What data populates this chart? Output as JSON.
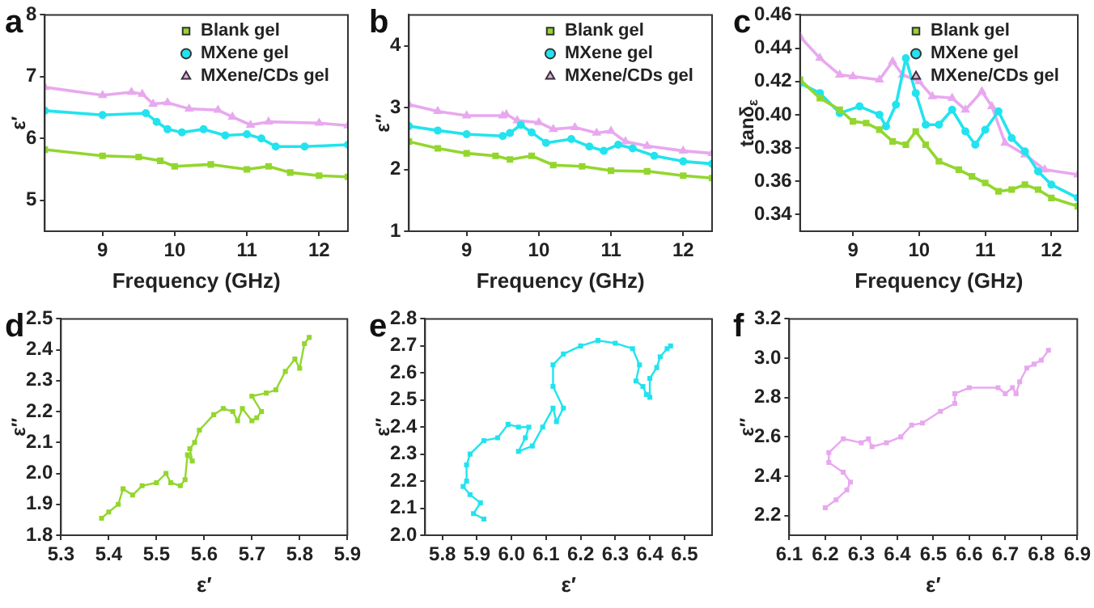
{
  "chart_data": [
    {
      "type": "line",
      "title": "a",
      "xlabel": "Frequency (GHz)",
      "ylabel": "ε′",
      "xlim": [
        8.2,
        12.4
      ],
      "xticks": [
        9,
        10,
        11,
        12
      ],
      "ylim": [
        4.5,
        8
      ],
      "yticks": [
        5,
        6,
        7,
        8
      ],
      "grid": false,
      "legend": "top right",
      "series": [
        {
          "name": "Blank gel",
          "color": "#93d62e",
          "marker": "square",
          "x": [
            8.2,
            9,
            9.5,
            9.8,
            10,
            10.5,
            11,
            11.3,
            11.6,
            12,
            12.4
          ],
          "values": [
            5.82,
            5.72,
            5.7,
            5.64,
            5.55,
            5.58,
            5.5,
            5.55,
            5.45,
            5.4,
            5.38
          ]
        },
        {
          "name": "MXene gel",
          "color": "#22e3ee",
          "marker": "circle",
          "x": [
            8.2,
            9,
            9.6,
            9.75,
            9.9,
            10.1,
            10.4,
            10.7,
            11,
            11.2,
            11.4,
            11.8,
            12.4
          ],
          "values": [
            6.45,
            6.38,
            6.41,
            6.27,
            6.15,
            6.1,
            6.15,
            6.05,
            6.07,
            6.0,
            5.87,
            5.87,
            5.9
          ]
        },
        {
          "name": "MXene/CDs gel",
          "color": "#e8a8ef",
          "marker": "triangle",
          "x": [
            8.2,
            9,
            9.4,
            9.55,
            9.7,
            9.9,
            10.2,
            10.6,
            10.8,
            11.05,
            11.3,
            12,
            12.4
          ],
          "values": [
            6.83,
            6.7,
            6.75,
            6.72,
            6.56,
            6.58,
            6.48,
            6.46,
            6.35,
            6.22,
            6.27,
            6.25,
            6.21
          ]
        }
      ]
    },
    {
      "type": "line",
      "title": "b",
      "xlabel": "Frequency (GHz)",
      "ylabel": "ε″",
      "xlim": [
        8.2,
        12.4
      ],
      "xticks": [
        9,
        10,
        11,
        12
      ],
      "ylim": [
        1,
        4.5
      ],
      "yticks": [
        1,
        2,
        3,
        4
      ],
      "grid": false,
      "legend": "top right",
      "series": [
        {
          "name": "Blank gel",
          "color": "#93d62e",
          "marker": "square",
          "x": [
            8.2,
            8.6,
            9,
            9.4,
            9.6,
            9.9,
            10.2,
            10.6,
            11,
            11.5,
            12,
            12.4
          ],
          "values": [
            2.45,
            2.34,
            2.26,
            2.22,
            2.16,
            2.22,
            2.07,
            2.05,
            1.98,
            1.97,
            1.9,
            1.86
          ]
        },
        {
          "name": "MXene gel",
          "color": "#22e3ee",
          "marker": "circle",
          "x": [
            8.2,
            8.6,
            9,
            9.5,
            9.6,
            9.75,
            9.9,
            10.1,
            10.45,
            10.7,
            10.9,
            11.1,
            11.3,
            11.6,
            12,
            12.4
          ],
          "values": [
            2.7,
            2.63,
            2.57,
            2.54,
            2.59,
            2.72,
            2.6,
            2.43,
            2.49,
            2.37,
            2.3,
            2.4,
            2.34,
            2.22,
            2.13,
            2.09
          ]
        },
        {
          "name": "MXene/CDs gel",
          "color": "#e8a8ef",
          "marker": "triangle",
          "x": [
            8.2,
            8.6,
            9,
            9.5,
            9.55,
            9.7,
            10,
            10.2,
            10.5,
            10.8,
            11,
            11.2,
            11.5,
            12,
            12.4
          ],
          "values": [
            3.05,
            2.94,
            2.87,
            2.87,
            2.89,
            2.79,
            2.76,
            2.65,
            2.68,
            2.59,
            2.62,
            2.45,
            2.38,
            2.3,
            2.26
          ]
        }
      ]
    },
    {
      "type": "line",
      "title": "c",
      "xlabel": "Frequency (GHz)",
      "ylabel": "tanδ$_{ε}$",
      "xlim": [
        8.2,
        12.4
      ],
      "xticks": [
        9,
        10,
        11,
        12
      ],
      "ylim": [
        0.33,
        0.46
      ],
      "yticks": [
        0.34,
        0.36,
        0.38,
        {
          "value": 0.4,
          "label": "0.40"
        },
        0.42,
        0.44,
        0.46
      ],
      "grid": false,
      "legend": "top right",
      "series": [
        {
          "name": "Blank gel",
          "color": "#93d62e",
          "marker": "square",
          "x": [
            8.2,
            8.5,
            8.8,
            9,
            9.2,
            9.4,
            9.6,
            9.8,
            9.95,
            10.1,
            10.3,
            10.6,
            10.8,
            11,
            11.2,
            11.4,
            11.6,
            11.8,
            12,
            12.4
          ],
          "values": [
            0.421,
            0.41,
            0.403,
            0.396,
            0.395,
            0.391,
            0.384,
            0.382,
            0.39,
            0.382,
            0.372,
            0.367,
            0.363,
            0.359,
            0.354,
            0.355,
            0.358,
            0.355,
            0.35,
            0.345
          ]
        },
        {
          "name": "MXene gel",
          "color": "#22e3ee",
          "marker": "circle",
          "x": [
            8.2,
            8.5,
            8.8,
            9.1,
            9.4,
            9.5,
            9.65,
            9.8,
            9.95,
            10.1,
            10.3,
            10.5,
            10.7,
            10.85,
            11,
            11.2,
            11.4,
            11.6,
            11.8,
            12,
            12.4
          ],
          "values": [
            0.419,
            0.413,
            0.401,
            0.405,
            0.4,
            0.393,
            0.406,
            0.434,
            0.413,
            0.394,
            0.394,
            0.403,
            0.39,
            0.382,
            0.391,
            0.402,
            0.386,
            0.378,
            0.366,
            0.358,
            0.35
          ]
        },
        {
          "name": "MXene/CDs gel",
          "color": "#e8a8ef",
          "marker": "triangle",
          "x": [
            8.2,
            8.5,
            8.8,
            9,
            9.4,
            9.6,
            9.75,
            10,
            10.2,
            10.5,
            10.7,
            10.95,
            11.1,
            11.3,
            11.6,
            11.9,
            12.4
          ],
          "values": [
            0.447,
            0.434,
            0.424,
            0.423,
            0.421,
            0.432,
            0.424,
            0.42,
            0.411,
            0.41,
            0.403,
            0.414,
            0.405,
            0.383,
            0.376,
            0.367,
            0.364
          ]
        }
      ]
    },
    {
      "type": "line",
      "title": "d",
      "xlabel": "ε′",
      "ylabel": "ε″",
      "xlim": [
        5.3,
        5.9
      ],
      "xticks": [
        5.3,
        5.4,
        5.5,
        5.6,
        5.7,
        5.8,
        5.9
      ],
      "ylim": [
        1.8,
        2.5
      ],
      "yticks": [
        1.8,
        1.9,
        {
          "value": 2,
          "label": "2.0"
        },
        2.1,
        2.2,
        2.3,
        2.4,
        2.5
      ],
      "grid": false,
      "marker": "square",
      "series": [
        {
          "color": "#93d62e",
          "x": [
            5.385,
            5.4,
            5.42,
            5.43,
            5.45,
            5.47,
            5.5,
            5.52,
            5.53,
            5.55,
            5.56,
            5.565,
            5.575,
            5.57,
            5.58,
            5.59,
            5.62,
            5.64,
            5.66,
            5.67,
            5.68,
            5.7,
            5.71,
            5.72,
            5.7,
            5.73,
            5.75,
            5.77,
            5.79,
            5.8,
            5.81,
            5.82
          ],
          "values": [
            1.855,
            1.875,
            1.9,
            1.95,
            1.93,
            1.96,
            1.97,
            2.0,
            1.97,
            1.96,
            1.98,
            2.06,
            2.04,
            2.08,
            2.1,
            2.14,
            2.19,
            2.21,
            2.2,
            2.17,
            2.21,
            2.17,
            2.18,
            2.2,
            2.25,
            2.26,
            2.27,
            2.33,
            2.37,
            2.34,
            2.42,
            2.44
          ]
        }
      ]
    },
    {
      "type": "line",
      "title": "e",
      "xlabel": "ε′",
      "ylabel": "ε″",
      "xlim": [
        5.75,
        6.58
      ],
      "xticks": [
        5.8,
        5.9,
        {
          "value": 6,
          "label": "6.0"
        },
        6.1,
        6.2,
        6.3,
        6.4,
        6.5
      ],
      "ylim": [
        2,
        2.8
      ],
      "yticks": [
        {
          "value": 2,
          "label": "2.0"
        },
        2.1,
        2.2,
        2.3,
        2.4,
        2.5,
        2.6,
        2.7,
        2.8
      ],
      "grid": false,
      "marker": "square",
      "series": [
        {
          "color": "#22e3ee",
          "x": [
            5.92,
            5.89,
            5.91,
            5.88,
            5.86,
            5.87,
            5.87,
            5.88,
            5.92,
            5.96,
            5.99,
            6.02,
            6.05,
            6.04,
            6.02,
            6.06,
            6.09,
            6.12,
            6.13,
            6.15,
            6.12,
            6.12,
            6.15,
            6.2,
            6.25,
            6.3,
            6.35,
            6.37,
            6.36,
            6.38,
            6.39,
            6.4,
            6.4,
            6.42,
            6.43,
            6.45,
            6.46
          ],
          "values": [
            2.06,
            2.08,
            2.12,
            2.15,
            2.18,
            2.2,
            2.26,
            2.3,
            2.35,
            2.36,
            2.41,
            2.4,
            2.4,
            2.36,
            2.31,
            2.33,
            2.4,
            2.47,
            2.42,
            2.47,
            2.55,
            2.63,
            2.67,
            2.7,
            2.72,
            2.71,
            2.69,
            2.63,
            2.57,
            2.55,
            2.52,
            2.51,
            2.58,
            2.62,
            2.66,
            2.69,
            2.7
          ]
        }
      ]
    },
    {
      "type": "line",
      "title": "f",
      "xlabel": "ε′",
      "ylabel": "ε″",
      "xlim": [
        6.1,
        6.9
      ],
      "xticks": [
        6.1,
        6.2,
        6.3,
        6.4,
        6.5,
        6.6,
        6.7,
        6.8,
        6.9
      ],
      "ylim": [
        2.1,
        3.2
      ],
      "yticks": [
        2.2,
        2.4,
        2.6,
        2.8,
        {
          "value": 3,
          "label": "3.0"
        },
        3.2
      ],
      "grid": false,
      "marker": "square",
      "series": [
        {
          "color": "#e8a8ef",
          "x": [
            6.2,
            6.23,
            6.26,
            6.27,
            6.25,
            6.21,
            6.21,
            6.25,
            6.3,
            6.32,
            6.33,
            6.37,
            6.41,
            6.44,
            6.47,
            6.52,
            6.56,
            6.56,
            6.6,
            6.68,
            6.7,
            6.72,
            6.73,
            6.74,
            6.76,
            6.78,
            6.8,
            6.82
          ],
          "values": [
            2.24,
            2.28,
            2.33,
            2.37,
            2.42,
            2.47,
            2.52,
            2.59,
            2.57,
            2.59,
            2.55,
            2.57,
            2.6,
            2.66,
            2.67,
            2.73,
            2.77,
            2.82,
            2.85,
            2.85,
            2.82,
            2.85,
            2.82,
            2.88,
            2.95,
            2.97,
            2.99,
            3.04
          ]
        }
      ]
    }
  ]
}
